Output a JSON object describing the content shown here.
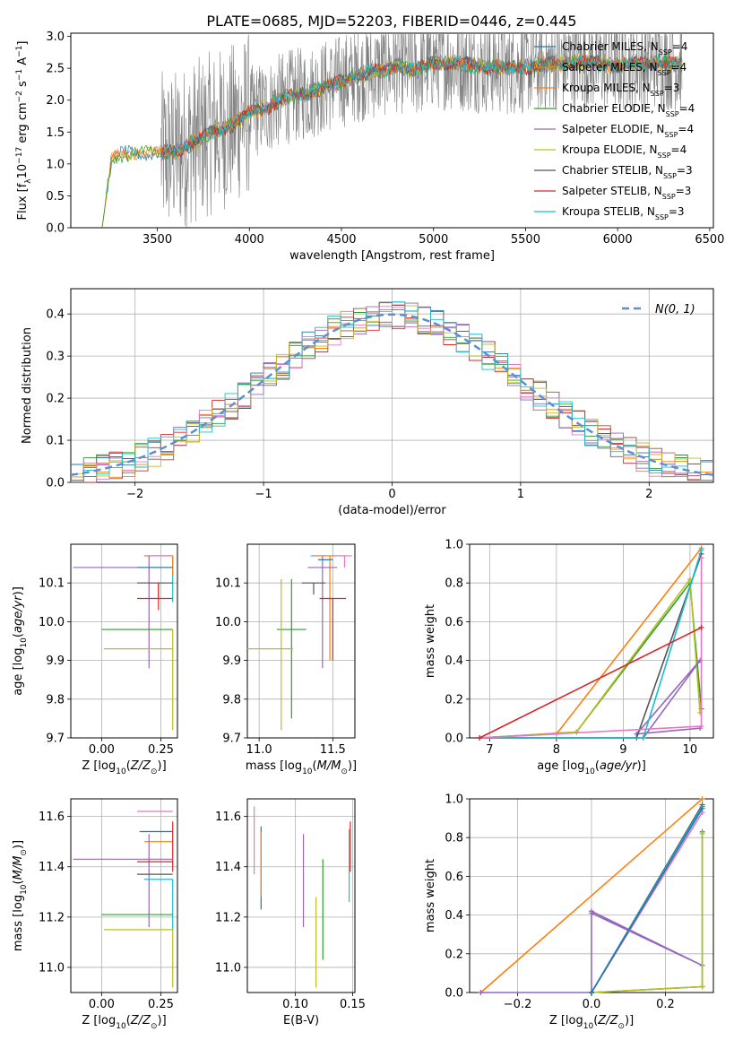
{
  "figure_title": "PLATE=0685, MJD=52203, FIBERID=0446, z=0.445",
  "colors": {
    "grid": "#b0b0b0",
    "frame": "#000000",
    "runs": [
      "#1f77b4",
      "#ff7f0e",
      "#2ca02c",
      "#d62728",
      "#9467bd",
      "#8c564b",
      "#e377c2",
      "#bcbd22",
      "#17becf"
    ],
    "observed": "#808080",
    "normal": "#5b8fd4"
  },
  "chart_data": [
    {
      "id": "spectrum",
      "type": "line",
      "xlabel": "wavelength [Angstrom, rest frame]",
      "ylabel": "Flux [f_λ 10^-17 erg cm^-2 s^-1 A^-1]",
      "xlim": [
        3030,
        6520
      ],
      "ylim": [
        0,
        3.05
      ],
      "xticks": [
        3500,
        4000,
        4500,
        5000,
        5500,
        6000,
        6500
      ],
      "yticks": [
        0.0,
        0.5,
        1.0,
        1.5,
        2.0,
        2.5,
        3.0
      ],
      "grid": false,
      "legend_position": "upper right",
      "legend": [
        {
          "label": "Chabrier MILES, N",
          "sub": "SSP",
          "tail": "=4",
          "color": "#1f77b4"
        },
        {
          "label": "Salpeter MILES, N",
          "sub": "SSP",
          "tail": "=4",
          "color": "#ff7f0e"
        },
        {
          "label": "Kroupa MILES, N",
          "sub": "SSP",
          "tail": "=3",
          "color": "#ff7f0e"
        },
        {
          "label": "Chabrier ELODIE, N",
          "sub": "SSP",
          "tail": "=4",
          "color": "#2ca02c"
        },
        {
          "label": "Salpeter ELODIE, N",
          "sub": "SSP",
          "tail": "=4",
          "color": "#9467bd"
        },
        {
          "label": "Kroupa ELODIE, N",
          "sub": "SSP",
          "tail": "=4",
          "color": "#bcbd22"
        },
        {
          "label": "Chabrier STELIB, N",
          "sub": "SSP",
          "tail": "=3",
          "color": "#555555"
        },
        {
          "label": "Salpeter STELIB, N",
          "sub": "SSP",
          "tail": "=3",
          "color": "#d62728"
        },
        {
          "label": "Kroupa STELIB, N",
          "sub": "SSP",
          "tail": "=3",
          "color": "#17becf"
        }
      ],
      "model_trend": {
        "x": [
          3200,
          3250,
          3300,
          3400,
          3500,
          3600,
          3700,
          3800,
          3900,
          4000,
          4100,
          4200,
          4300,
          4400,
          4500,
          4600,
          4700,
          4800,
          4900,
          5000,
          5200,
          5400,
          5600,
          5800,
          6000,
          6200,
          6350
        ],
        "y": [
          0.0,
          1.05,
          1.15,
          1.18,
          1.15,
          1.2,
          1.35,
          1.5,
          1.6,
          1.8,
          1.9,
          2.05,
          2.1,
          2.2,
          2.3,
          2.4,
          2.45,
          2.55,
          2.45,
          2.6,
          2.55,
          2.5,
          2.55,
          2.6,
          2.55,
          2.6,
          2.55
        ]
      },
      "observed_range": [
        3520,
        6350
      ]
    },
    {
      "id": "residual_hist",
      "type": "bar",
      "xlabel": "(data-model)/error",
      "ylabel": "Normed distribution",
      "xlim": [
        -2.5,
        2.5
      ],
      "ylim": [
        0,
        0.46
      ],
      "xticks": [
        -2,
        -1,
        0,
        1,
        2
      ],
      "yticks": [
        0.0,
        0.1,
        0.2,
        0.3,
        0.4
      ],
      "grid": true,
      "legend_position": "upper right",
      "legend": [
        {
          "label": "N(0, 1)",
          "color": "#5b8fd4"
        }
      ],
      "bin_width": 0.1,
      "bin_range": [
        -2.5,
        2.5
      ],
      "base_series_note_free": true
    },
    {
      "id": "age_vs_Z",
      "type": "scatter",
      "xlabel": "Z [log10(Z/Z⊙)]",
      "ylabel": "age [log10(age/yr)]",
      "xlim": [
        -0.13,
        0.32
      ],
      "ylim": [
        9.7,
        10.2
      ],
      "xticks": [
        0.0,
        0.25
      ],
      "yticks": [
        9.7,
        9.8,
        9.9,
        10.0,
        10.1
      ],
      "grid": true,
      "points": [
        {
          "x": 0.3,
          "y": 10.17,
          "xerr": [
            0.12,
            0.0
          ],
          "yerr": [
            0.12,
            0.0
          ],
          "color": "#17becf"
        },
        {
          "x": 0.3,
          "y": 10.17,
          "xerr": [
            0.12,
            0.0
          ],
          "yerr": [
            0.05,
            0.0
          ],
          "color": "#ff7f0e"
        },
        {
          "x": 0.3,
          "y": 10.17,
          "xerr": [
            0.1,
            0.0
          ],
          "yerr": [
            0.0,
            0.0
          ],
          "color": "#e377c2"
        },
        {
          "x": 0.2,
          "y": 10.14,
          "xerr": [
            0.32,
            0.1
          ],
          "yerr": [
            0.26,
            0.03
          ],
          "color": "#9467bd"
        },
        {
          "x": 0.25,
          "y": 10.14,
          "xerr": [
            0.1,
            0.05
          ],
          "yerr": [
            0.0,
            0.0
          ],
          "color": "#1f77b4"
        },
        {
          "x": 0.24,
          "y": 10.1,
          "xerr": [
            0.09,
            0.06
          ],
          "yerr": [
            0.04,
            0.0
          ],
          "color": "#555555"
        },
        {
          "x": 0.24,
          "y": 10.06,
          "xerr": [
            0.09,
            0.06
          ],
          "yerr": [
            0.03,
            0.04
          ],
          "color": "#d62728"
        },
        {
          "x": 0.3,
          "y": 9.98,
          "xerr": [
            0.3,
            0.0
          ],
          "yerr": [
            0.0,
            0.0
          ],
          "color": "#2ca02c"
        },
        {
          "x": 0.3,
          "y": 9.93,
          "xerr": [
            0.29,
            0.0
          ],
          "yerr": [
            0.21,
            0.05
          ],
          "color": "#bcbd22"
        }
      ]
    },
    {
      "id": "age_vs_mass",
      "type": "scatter",
      "xlabel": "mass [log10(M/M⊙)]",
      "ylabel": "",
      "xlim": [
        10.92,
        11.65
      ],
      "ylim": [
        9.7,
        10.2
      ],
      "xticks": [
        11.0,
        11.5
      ],
      "yticks": [
        9.7,
        9.8,
        9.9,
        10.0,
        10.1
      ],
      "grid": true,
      "points": [
        {
          "x": 11.55,
          "y": 10.17,
          "xerr": [
            0.2,
            0.05
          ],
          "yerr": [
            0.0,
            0.0
          ],
          "color": "#17becf"
        },
        {
          "x": 11.48,
          "y": 10.17,
          "xerr": [
            0.1,
            0.03
          ],
          "yerr": [
            0.27,
            0.0
          ],
          "color": "#ff7f0e"
        },
        {
          "x": 11.58,
          "y": 10.17,
          "xerr": [
            0.05,
            0.05
          ],
          "yerr": [
            0.03,
            0.0
          ],
          "color": "#e377c2"
        },
        {
          "x": 11.43,
          "y": 10.14,
          "xerr": [
            0.1,
            0.1
          ],
          "yerr": [
            0.26,
            0.03
          ],
          "color": "#9467bd"
        },
        {
          "x": 11.45,
          "y": 10.16,
          "xerr": [
            0.05,
            0.05
          ],
          "yerr": [
            0.0,
            0.0
          ],
          "color": "#1f77b4"
        },
        {
          "x": 11.37,
          "y": 10.1,
          "xerr": [
            0.08,
            0.08
          ],
          "yerr": [
            0.03,
            0.0
          ],
          "color": "#555555"
        },
        {
          "x": 11.5,
          "y": 10.06,
          "xerr": [
            0.09,
            0.09
          ],
          "yerr": [
            0.16,
            0.0
          ],
          "color": "#d62728"
        },
        {
          "x": 11.22,
          "y": 9.98,
          "xerr": [
            0.1,
            0.1
          ],
          "yerr": [
            0.23,
            0.13
          ],
          "color": "#2ca02c"
        },
        {
          "x": 11.15,
          "y": 9.93,
          "xerr": [
            0.24,
            0.08
          ],
          "yerr": [
            0.21,
            0.18
          ],
          "color": "#bcbd22"
        }
      ]
    },
    {
      "id": "massweight_vs_age",
      "type": "line",
      "xlabel": "age [log10(age/yr)]",
      "ylabel": "mass weight",
      "xlim": [
        6.7,
        10.35
      ],
      "ylim": [
        0,
        1.0
      ],
      "xticks": [
        7,
        8,
        9,
        10
      ],
      "yticks": [
        0.0,
        0.2,
        0.4,
        0.6,
        0.8,
        1.0
      ],
      "grid": true,
      "series": [
        {
          "color": "#ff7f0e",
          "x": [
            6.85,
            8.0,
            10.17
          ],
          "y": [
            0.0,
            0.02,
            0.98
          ]
        },
        {
          "color": "#2ca02c",
          "x": [
            6.85,
            8.3,
            10.0,
            10.17
          ],
          "y": [
            0.0,
            0.03,
            0.8,
            0.15
          ]
        },
        {
          "color": "#bcbd22",
          "x": [
            6.85,
            8.3,
            10.0,
            10.15
          ],
          "y": [
            0.0,
            0.03,
            0.82,
            0.13
          ]
        },
        {
          "color": "#9467bd",
          "x": [
            6.85,
            9.3,
            10.15,
            9.2,
            10.15
          ],
          "y": [
            0.0,
            0.0,
            0.4,
            0.02,
            0.05
          ]
        },
        {
          "color": "#555555",
          "x": [
            6.85,
            9.2,
            10.17
          ],
          "y": [
            0.0,
            0.0,
            0.95
          ]
        },
        {
          "color": "#17becf",
          "x": [
            6.85,
            9.3,
            10.17
          ],
          "y": [
            0.0,
            0.0,
            0.97
          ]
        },
        {
          "color": "#e377c2",
          "x": [
            6.85,
            10.17,
            10.17
          ],
          "y": [
            0.0,
            0.06,
            0.93
          ]
        },
        {
          "color": "#d62728",
          "x": [
            6.85,
            10.17
          ],
          "y": [
            0.0,
            0.57
          ]
        }
      ]
    },
    {
      "id": "mass_vs_Z",
      "type": "scatter",
      "xlabel": "Z [log10(Z/Z⊙)]",
      "ylabel": "mass [log10(M/M⊙)]",
      "xlim": [
        -0.13,
        0.32
      ],
      "ylim": [
        10.9,
        11.67
      ],
      "xticks": [
        0.0,
        0.25
      ],
      "yticks": [
        11.0,
        11.2,
        11.4,
        11.6
      ],
      "grid": true,
      "points": [
        {
          "x": 0.3,
          "y": 11.62,
          "xerr": [
            0.15,
            0.0
          ],
          "yerr": [
            0.0,
            0.0
          ],
          "color": "#e377c2"
        },
        {
          "x": 0.3,
          "y": 11.54,
          "xerr": [
            0.14,
            0.0
          ],
          "yerr": [
            0.0,
            0.0
          ],
          "color": "#1f77b4"
        },
        {
          "x": 0.3,
          "y": 11.5,
          "xerr": [
            0.12,
            0.0
          ],
          "yerr": [
            0.0,
            0.0
          ],
          "color": "#ff7f0e"
        },
        {
          "x": 0.3,
          "y": 11.48,
          "xerr": [
            0.0,
            0.0
          ],
          "yerr": [
            0.1,
            0.1
          ],
          "color": "#d62728"
        },
        {
          "x": 0.2,
          "y": 11.43,
          "xerr": [
            0.32,
            0.1
          ],
          "yerr": [
            0.27,
            0.1
          ],
          "color": "#9467bd"
        },
        {
          "x": 0.24,
          "y": 11.42,
          "xerr": [
            0.09,
            0.06
          ],
          "yerr": [
            0.0,
            0.0
          ],
          "color": "#d62728"
        },
        {
          "x": 0.24,
          "y": 11.37,
          "xerr": [
            0.09,
            0.06
          ],
          "yerr": [
            0.0,
            0.0
          ],
          "color": "#555555"
        },
        {
          "x": 0.3,
          "y": 11.35,
          "xerr": [
            0.12,
            0.0
          ],
          "yerr": [
            0.2,
            0.0
          ],
          "color": "#17becf"
        },
        {
          "x": 0.3,
          "y": 11.21,
          "xerr": [
            0.3,
            0.0
          ],
          "yerr": [
            0.0,
            0.0
          ],
          "color": "#2ca02c"
        },
        {
          "x": 0.3,
          "y": 11.15,
          "xerr": [
            0.29,
            0.0
          ],
          "yerr": [
            0.23,
            0.0
          ],
          "color": "#bcbd22"
        }
      ]
    },
    {
      "id": "ebv",
      "type": "scatter",
      "xlabel": "E(B-V)",
      "ylabel": "",
      "xlim": [
        0.058,
        0.152
      ],
      "ylim": [
        10.9,
        11.67
      ],
      "xticks": [
        0.1,
        0.15
      ],
      "yticks": [
        11.0,
        11.2,
        11.4,
        11.6
      ],
      "grid": true,
      "points": [
        {
          "x": 0.064,
          "y": 11.5,
          "xerr": [
            0,
            0
          ],
          "yerr": [
            0.13,
            0.14
          ],
          "color": "#e377c2"
        },
        {
          "x": 0.07,
          "y": 11.39,
          "xerr": [
            0,
            0
          ],
          "yerr": [
            0.16,
            0.17
          ],
          "color": "#1f77b4"
        },
        {
          "x": 0.07,
          "y": 11.41,
          "xerr": [
            0,
            0
          ],
          "yerr": [
            0.13,
            0.13
          ],
          "color": "#ff7f0e"
        },
        {
          "x": 0.107,
          "y": 11.34,
          "xerr": [
            0,
            0
          ],
          "yerr": [
            0.18,
            0.19
          ],
          "color": "#9467bd"
        },
        {
          "x": 0.118,
          "y": 11.09,
          "xerr": [
            0,
            0
          ],
          "yerr": [
            0.17,
            0.19
          ],
          "color": "#bcbd22"
        },
        {
          "x": 0.124,
          "y": 11.23,
          "xerr": [
            0,
            0
          ],
          "yerr": [
            0.2,
            0.2
          ],
          "color": "#2ca02c"
        },
        {
          "x": 0.147,
          "y": 11.41,
          "xerr": [
            0,
            0
          ],
          "yerr": [
            0.15,
            0.14
          ],
          "color": "#17becf"
        },
        {
          "x": 0.148,
          "y": 11.48,
          "xerr": [
            0,
            0
          ],
          "yerr": [
            0.1,
            0.1
          ],
          "color": "#d62728"
        }
      ]
    },
    {
      "id": "massweight_vs_Z",
      "type": "line",
      "xlabel": "Z [log10(Z/Z⊙)]",
      "ylabel": "mass weight",
      "xlim": [
        -0.33,
        0.33
      ],
      "ylim": [
        0,
        1.0
      ],
      "xticks": [
        -0.2,
        0.0,
        0.2
      ],
      "yticks": [
        0.0,
        0.2,
        0.4,
        0.6,
        0.8,
        1.0
      ],
      "grid": true,
      "series": [
        {
          "color": "#ff7f0e",
          "x": [
            -0.3,
            0.3
          ],
          "y": [
            0.0,
            1.0
          ]
        },
        {
          "color": "#9467bd",
          "x": [
            -0.3,
            0.0,
            0.0,
            0.3,
            0.0
          ],
          "y": [
            0.0,
            0.0,
            0.42,
            0.14,
            0.41
          ]
        },
        {
          "color": "#2ca02c",
          "x": [
            0.0,
            0.3,
            0.3
          ],
          "y": [
            0.0,
            0.03,
            0.83
          ]
        },
        {
          "color": "#bcbd22",
          "x": [
            0.0,
            0.3,
            0.3
          ],
          "y": [
            0.0,
            0.03,
            0.82
          ]
        },
        {
          "color": "#555555",
          "x": [
            0.0,
            0.3
          ],
          "y": [
            0.0,
            0.97
          ]
        },
        {
          "color": "#17becf",
          "x": [
            0.0,
            0.3
          ],
          "y": [
            0.0,
            0.96
          ]
        },
        {
          "color": "#e377c2",
          "x": [
            0.0,
            0.3
          ],
          "y": [
            0.0,
            0.93
          ]
        },
        {
          "color": "#1f77b4",
          "x": [
            0.0,
            0.3
          ],
          "y": [
            0.0,
            0.95
          ]
        }
      ]
    }
  ]
}
